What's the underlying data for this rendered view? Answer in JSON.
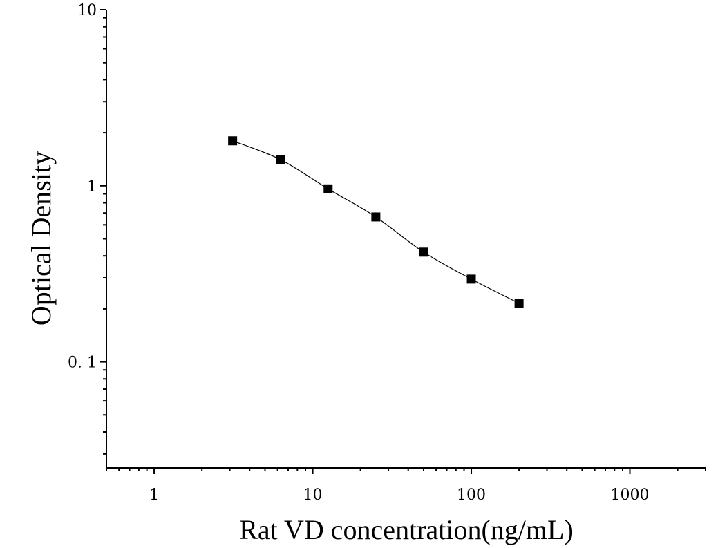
{
  "chart_data": {
    "type": "scatter",
    "xlabel": "Rat VD concentration(ng/mL)",
    "ylabel": "Optical Density",
    "xscale": "log",
    "yscale": "log",
    "xlim": [
      0.5,
      3000
    ],
    "ylim": [
      0.025,
      10
    ],
    "x_ticks": [
      {
        "value": 1,
        "label": "1"
      },
      {
        "value": 10,
        "label": "10"
      },
      {
        "value": 100,
        "label": "100"
      },
      {
        "value": 1000,
        "label": "1000"
      }
    ],
    "y_ticks": [
      {
        "value": 0.1,
        "label": "0. 1"
      },
      {
        "value": 1,
        "label": "1"
      },
      {
        "value": 10,
        "label": "10"
      }
    ],
    "grid": false,
    "series": [
      {
        "x": [
          3.125,
          6.25,
          12.5,
          25,
          50,
          100,
          200
        ],
        "y": [
          1.8,
          1.41,
          0.96,
          0.665,
          0.42,
          0.295,
          0.215
        ],
        "marker": "square",
        "fit_curve": true
      }
    ],
    "colors": {
      "marker": "#000000",
      "axis": "#000000",
      "curve": "#000000"
    }
  }
}
